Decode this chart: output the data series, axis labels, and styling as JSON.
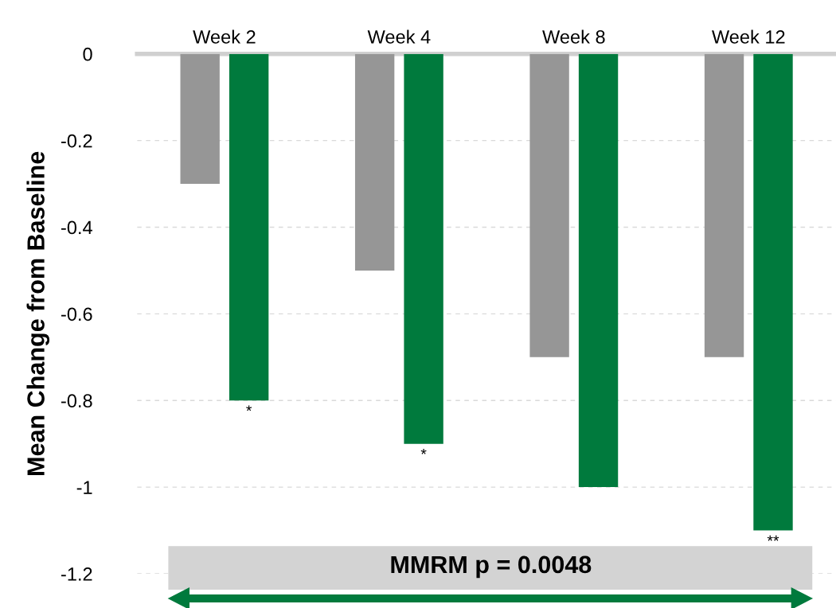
{
  "chart_data": {
    "type": "bar",
    "ylabel": "Mean Change from Baseline",
    "categories": [
      "Week 2",
      "Week 4",
      "Week 8",
      "Week 12"
    ],
    "series": [
      {
        "color": "#969696",
        "values": [
          -0.3,
          -0.5,
          -0.7,
          -0.7
        ]
      },
      {
        "color": "#007a3d",
        "values": [
          -0.8,
          -0.9,
          -1.0,
          -1.1
        ]
      }
    ],
    "ylim": [
      -1.2,
      0
    ],
    "yticks": [
      0,
      -0.2,
      -0.4,
      -0.6,
      -0.8,
      -1,
      -1.2
    ],
    "grid": "y",
    "legend": false,
    "annotations": [
      "*",
      "*",
      "**",
      "MMRM p = 0.0048"
    ]
  }
}
